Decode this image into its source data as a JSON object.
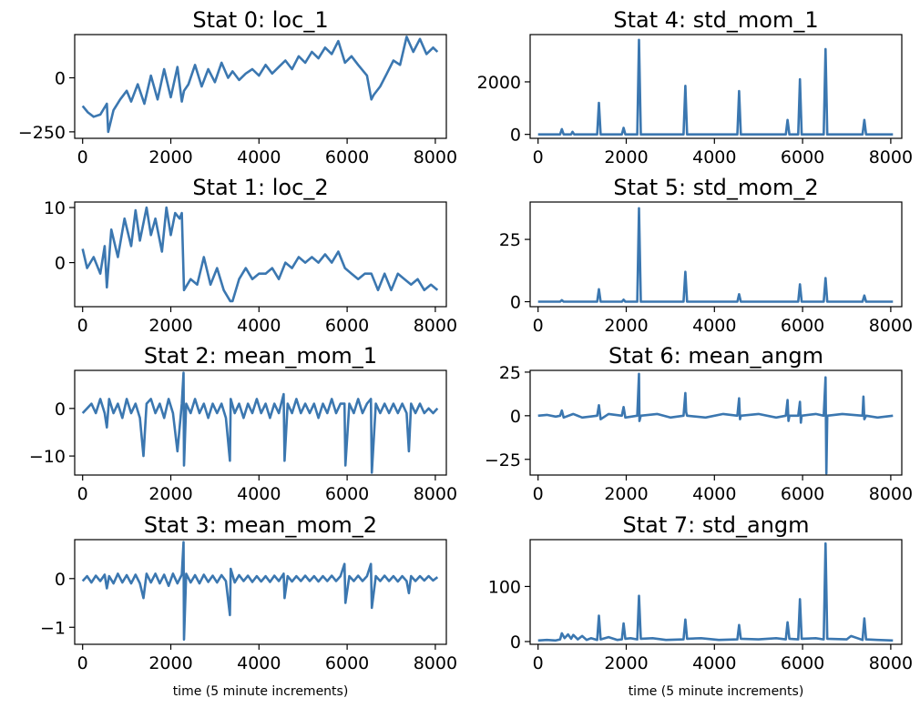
{
  "chart_data": [
    {
      "type": "line",
      "title": "Stat 0: loc_1",
      "xlabel": "",
      "xlim": [
        -180,
        8250
      ],
      "ylim": [
        -280,
        200
      ],
      "xticks": [
        0,
        2000,
        4000,
        6000,
        8000
      ],
      "yticks": [
        -250,
        0
      ],
      "ytick_labels": [
        "−250",
        "0"
      ],
      "color": "#3b77b0",
      "x": [
        0,
        120,
        250,
        400,
        550,
        580,
        700,
        850,
        1000,
        1100,
        1250,
        1400,
        1550,
        1700,
        1850,
        2000,
        2150,
        2250,
        2300,
        2400,
        2550,
        2700,
        2850,
        3000,
        3150,
        3300,
        3400,
        3550,
        3700,
        3850,
        4000,
        4150,
        4300,
        4450,
        4600,
        4750,
        4900,
        5050,
        5200,
        5350,
        5500,
        5650,
        5800,
        5950,
        6100,
        6250,
        6450,
        6550,
        6600,
        6750,
        6900,
        7050,
        7200,
        7350,
        7500,
        7650,
        7800,
        7950,
        8050
      ],
      "y": [
        -130,
        -160,
        -180,
        -170,
        -120,
        -250,
        -150,
        -100,
        -60,
        -110,
        -30,
        -120,
        10,
        -100,
        40,
        -90,
        50,
        -110,
        -60,
        -30,
        60,
        -40,
        40,
        -20,
        70,
        0,
        30,
        -10,
        20,
        40,
        10,
        60,
        20,
        50,
        80,
        40,
        100,
        70,
        120,
        90,
        140,
        110,
        170,
        70,
        100,
        60,
        10,
        -100,
        -80,
        -40,
        20,
        80,
        60,
        190,
        120,
        180,
        110,
        140,
        120
      ]
    },
    {
      "type": "line",
      "title": "Stat 1: loc_2",
      "xlabel": "",
      "xlim": [
        -180,
        8250
      ],
      "ylim": [
        -8,
        11
      ],
      "xticks": [
        0,
        2000,
        4000,
        6000,
        8000
      ],
      "yticks": [
        -10,
        0,
        10
      ],
      "ytick_labels": [
        "",
        "0",
        "10"
      ],
      "color": "#3b77b0",
      "x": [
        0,
        100,
        250,
        400,
        500,
        550,
        650,
        800,
        950,
        1100,
        1200,
        1300,
        1450,
        1550,
        1650,
        1800,
        1900,
        2000,
        2100,
        2200,
        2250,
        2300,
        2450,
        2600,
        2750,
        2900,
        3050,
        3200,
        3350,
        3400,
        3550,
        3700,
        3850,
        4000,
        4150,
        4300,
        4450,
        4600,
        4750,
        4900,
        5050,
        5200,
        5350,
        5500,
        5650,
        5800,
        5950,
        6100,
        6250,
        6400,
        6550,
        6700,
        6850,
        7000,
        7150,
        7300,
        7450,
        7600,
        7750,
        7900,
        8050
      ],
      "y": [
        2.5,
        -1,
        1,
        -2,
        3,
        -4.5,
        6,
        1,
        8,
        3,
        9.5,
        4,
        10,
        5,
        8,
        2,
        10,
        5,
        9,
        8,
        9,
        -5,
        -3,
        -4,
        1,
        -4,
        -1,
        -5,
        -7,
        -7,
        -3,
        -1,
        -3,
        -2,
        -2,
        -1,
        -3,
        0,
        -1,
        1,
        0,
        1,
        0,
        1.5,
        0,
        2,
        -1,
        -2,
        -3,
        -2,
        -2,
        -5,
        -2,
        -5,
        -2,
        -3,
        -4,
        -3,
        -5,
        -4,
        -5
      ]
    },
    {
      "type": "line",
      "title": "Stat 2: mean_mom_1",
      "xlabel": "",
      "xlim": [
        -180,
        8250
      ],
      "ylim": [
        -14,
        8
      ],
      "xticks": [
        0,
        2000,
        4000,
        6000,
        8000
      ],
      "yticks": [
        -10,
        0
      ],
      "ytick_labels": [
        "−10",
        "0"
      ],
      "color": "#3b77b0",
      "x": [
        0,
        100,
        200,
        300,
        400,
        500,
        550,
        600,
        700,
        800,
        900,
        1000,
        1100,
        1200,
        1300,
        1380,
        1450,
        1550,
        1650,
        1750,
        1850,
        1950,
        2050,
        2150,
        2250,
        2290,
        2300,
        2350,
        2450,
        2550,
        2650,
        2750,
        2850,
        2950,
        3050,
        3150,
        3250,
        3340,
        3360,
        3450,
        3550,
        3650,
        3750,
        3850,
        3950,
        4050,
        4150,
        4250,
        4350,
        4450,
        4560,
        4580,
        4650,
        4750,
        4850,
        4950,
        5050,
        5150,
        5250,
        5350,
        5450,
        5550,
        5650,
        5750,
        5850,
        5940,
        5960,
        6050,
        6150,
        6250,
        6350,
        6450,
        6540,
        6560,
        6650,
        6750,
        6850,
        6950,
        7050,
        7150,
        7250,
        7350,
        7400,
        7450,
        7550,
        7650,
        7750,
        7850,
        7950,
        8050
      ],
      "y": [
        -1,
        0,
        1,
        -1,
        2,
        -1,
        -4,
        2,
        -1,
        1,
        -2,
        2,
        -1,
        1,
        -2,
        -10,
        1,
        2,
        -1,
        1,
        -2,
        2,
        -1,
        -9,
        1,
        7.5,
        -12,
        1,
        -1,
        2,
        -1,
        1,
        -2,
        1,
        -1,
        1,
        -2,
        -11,
        2,
        -1,
        1,
        -2,
        1,
        -1,
        2,
        -1,
        1,
        -2,
        1,
        -1,
        3,
        -11,
        1,
        -1,
        2,
        -1,
        1,
        -1,
        1,
        -2,
        1,
        -1,
        2,
        -1,
        1,
        1,
        -12,
        1,
        -1,
        2,
        -1,
        1,
        2,
        -13.5,
        1,
        -1,
        1,
        -1,
        1,
        -1,
        1,
        -1,
        -9,
        1,
        -1,
        1,
        -1,
        0,
        -1,
        0
      ]
    },
    {
      "type": "line",
      "title": "Stat 3: mean_mom_2",
      "xlabel": "time (5 minute increments)",
      "xlim": [
        -180,
        8250
      ],
      "ylim": [
        -1.35,
        0.8
      ],
      "xticks": [
        0,
        2000,
        4000,
        6000,
        8000
      ],
      "yticks": [
        -1,
        0
      ],
      "ytick_labels": [
        "−1",
        "0"
      ],
      "color": "#3b77b0",
      "x": [
        0,
        100,
        200,
        300,
        400,
        500,
        550,
        600,
        700,
        800,
        900,
        1000,
        1100,
        1200,
        1300,
        1380,
        1450,
        1550,
        1650,
        1750,
        1850,
        1950,
        2050,
        2150,
        2250,
        2290,
        2300,
        2350,
        2450,
        2550,
        2650,
        2750,
        2850,
        2950,
        3050,
        3150,
        3250,
        3340,
        3360,
        3450,
        3550,
        3650,
        3750,
        3850,
        3950,
        4050,
        4150,
        4250,
        4350,
        4450,
        4560,
        4580,
        4650,
        4750,
        4850,
        4950,
        5050,
        5150,
        5250,
        5350,
        5450,
        5550,
        5650,
        5750,
        5850,
        5940,
        5960,
        6050,
        6150,
        6250,
        6350,
        6450,
        6540,
        6560,
        6650,
        6750,
        6850,
        6950,
        7050,
        7150,
        7250,
        7350,
        7400,
        7450,
        7550,
        7650,
        7750,
        7850,
        7950,
        8050
      ],
      "y": [
        -0.05,
        0.05,
        -0.08,
        0.06,
        -0.05,
        0.08,
        -0.2,
        0.05,
        -0.1,
        0.1,
        -0.08,
        0.07,
        -0.1,
        0.08,
        -0.1,
        -0.4,
        0.1,
        -0.08,
        0.1,
        -0.1,
        0.08,
        -0.15,
        0.1,
        -0.1,
        0.08,
        0.75,
        -1.25,
        0.1,
        -0.08,
        0.07,
        -0.1,
        0.08,
        -0.07,
        0.06,
        -0.08,
        0.07,
        -0.05,
        -0.75,
        0.2,
        -0.08,
        0.07,
        -0.05,
        0.06,
        -0.07,
        0.05,
        -0.06,
        0.05,
        -0.07,
        0.06,
        -0.05,
        0.1,
        -0.4,
        0.05,
        -0.06,
        0.05,
        -0.05,
        0.06,
        -0.05,
        0.05,
        -0.06,
        0.05,
        -0.05,
        0.06,
        -0.05,
        0.05,
        0.3,
        -0.5,
        0.05,
        -0.05,
        0.06,
        -0.05,
        0.05,
        0.3,
        -0.6,
        0.05,
        -0.05,
        0.06,
        -0.05,
        0.05,
        -0.06,
        0.05,
        -0.05,
        -0.3,
        0.05,
        -0.05,
        0.05,
        -0.04,
        0.05,
        -0.04,
        0.03
      ]
    },
    {
      "type": "line",
      "title": "Stat 4: std_mom_1",
      "xlabel": "",
      "xlim": [
        -180,
        8250
      ],
      "ylim": [
        -150,
        3800
      ],
      "xticks": [
        0,
        2000,
        4000,
        6000,
        8000
      ],
      "yticks": [
        0,
        2000
      ],
      "ytick_labels": [
        "0",
        "2000"
      ],
      "color": "#3b77b0",
      "x": [
        0,
        500,
        540,
        580,
        750,
        780,
        820,
        1340,
        1380,
        1420,
        1900,
        1940,
        1980,
        2250,
        2290,
        2330,
        3300,
        3340,
        3380,
        4520,
        4560,
        4600,
        5620,
        5660,
        5700,
        5900,
        5940,
        5980,
        6480,
        6520,
        6560,
        7360,
        7400,
        7440,
        8050
      ],
      "y": [
        0,
        0,
        200,
        0,
        0,
        100,
        0,
        0,
        1200,
        0,
        0,
        250,
        0,
        0,
        3600,
        0,
        0,
        1850,
        0,
        0,
        1650,
        0,
        0,
        550,
        0,
        0,
        2100,
        0,
        0,
        3250,
        0,
        0,
        550,
        0,
        0
      ]
    },
    {
      "type": "line",
      "title": "Stat 5: std_mom_2",
      "xlabel": "",
      "xlim": [
        -180,
        8250
      ],
      "ylim": [
        -2,
        40
      ],
      "xticks": [
        0,
        2000,
        4000,
        6000,
        8000
      ],
      "yticks": [
        0,
        25
      ],
      "ytick_labels": [
        "0",
        "25"
      ],
      "color": "#3b77b0",
      "x": [
        0,
        500,
        540,
        580,
        1340,
        1380,
        1420,
        1900,
        1940,
        1980,
        2250,
        2290,
        2330,
        3300,
        3340,
        3380,
        4520,
        4560,
        4600,
        5900,
        5940,
        5980,
        6480,
        6520,
        6560,
        7360,
        7400,
        7440,
        8050
      ],
      "y": [
        0,
        0,
        0.6,
        0,
        0,
        5,
        0,
        0,
        0.8,
        0,
        0,
        37.5,
        0,
        0,
        12,
        0,
        0,
        3,
        0,
        0,
        7,
        0,
        0,
        9.5,
        0,
        0,
        2.5,
        0,
        0
      ]
    },
    {
      "type": "line",
      "title": "Stat 6: mean_angm",
      "xlabel": "",
      "xlim": [
        -180,
        8250
      ],
      "ylim": [
        -34,
        26
      ],
      "xticks": [
        0,
        2000,
        4000,
        6000,
        8000
      ],
      "yticks": [
        -25,
        0,
        25
      ],
      "ytick_labels": [
        "−25",
        "0",
        "25"
      ],
      "color": "#3b77b0",
      "x": [
        0,
        200,
        400,
        500,
        540,
        580,
        800,
        1000,
        1340,
        1380,
        1420,
        1600,
        1900,
        1940,
        1980,
        2250,
        2290,
        2300,
        2330,
        2700,
        3000,
        3300,
        3340,
        3360,
        3380,
        3800,
        4200,
        4520,
        4560,
        4580,
        4600,
        5000,
        5400,
        5620,
        5660,
        5680,
        5700,
        5900,
        5940,
        5960,
        5980,
        6300,
        6480,
        6520,
        6540,
        6560,
        6900,
        7360,
        7380,
        7400,
        7440,
        7700,
        8050
      ],
      "y": [
        0,
        0.5,
        -0.5,
        0,
        3,
        -1,
        1,
        -1,
        0,
        6,
        -2,
        1,
        0,
        5,
        -1,
        0,
        24,
        -3,
        0,
        1,
        -1,
        0,
        13,
        2,
        0,
        -1,
        1,
        0,
        10,
        -2,
        0,
        1,
        -1,
        0,
        9,
        -3,
        0,
        0,
        8,
        -4,
        0,
        1,
        0,
        22,
        -33,
        0,
        1,
        0,
        11,
        -2,
        0,
        -1,
        0
      ]
    },
    {
      "type": "line",
      "title": "Stat 7: std_angm",
      "xlabel": "time (5 minute increments)",
      "xlim": [
        -180,
        8250
      ],
      "ylim": [
        -5,
        185
      ],
      "xticks": [
        0,
        2000,
        4000,
        6000,
        8000
      ],
      "yticks": [
        0,
        100
      ],
      "ytick_labels": [
        "0",
        "100"
      ],
      "color": "#3b77b0",
      "x": [
        0,
        200,
        400,
        500,
        540,
        600,
        680,
        750,
        800,
        900,
        1000,
        1100,
        1200,
        1340,
        1380,
        1420,
        1600,
        1800,
        1900,
        1940,
        1980,
        2100,
        2250,
        2290,
        2330,
        2600,
        2900,
        3300,
        3340,
        3380,
        3700,
        4100,
        4520,
        4560,
        4600,
        5000,
        5400,
        5620,
        5660,
        5700,
        5900,
        5940,
        5980,
        6300,
        6480,
        6520,
        6560,
        7000,
        7100,
        7360,
        7400,
        7440,
        7700,
        8050
      ],
      "y": [
        2,
        3,
        2,
        4,
        15,
        6,
        13,
        5,
        12,
        4,
        10,
        3,
        6,
        3,
        47,
        4,
        8,
        3,
        4,
        33,
        5,
        6,
        4,
        83,
        5,
        6,
        3,
        4,
        40,
        5,
        6,
        3,
        4,
        30,
        5,
        4,
        6,
        4,
        35,
        5,
        4,
        77,
        5,
        6,
        4,
        178,
        5,
        4,
        10,
        3,
        42,
        4,
        3,
        2
      ]
    }
  ]
}
